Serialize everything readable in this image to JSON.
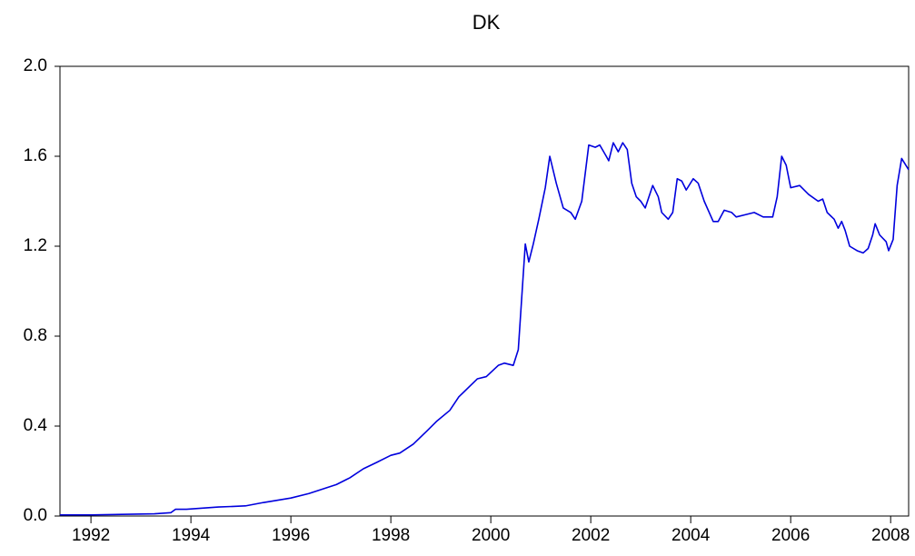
{
  "chart_data": {
    "type": "line",
    "title": "DK",
    "x": [
      1991.38,
      1992.0,
      1993.27,
      1993.6,
      1993.69,
      1993.91,
      1994.55,
      1995.09,
      1995.45,
      1996.0,
      1996.36,
      1996.91,
      1997.18,
      1997.45,
      1997.73,
      1998.0,
      1998.18,
      1998.45,
      1998.73,
      1998.91,
      1999.18,
      1999.36,
      1999.73,
      1999.91,
      2000.15,
      2000.27,
      2000.45,
      2000.55,
      2000.69,
      2000.76,
      2000.85,
      2000.96,
      2001.09,
      2001.18,
      2001.31,
      2001.45,
      2001.6,
      2001.69,
      2001.82,
      2001.96,
      2002.09,
      2002.18,
      2002.31,
      2002.36,
      2002.45,
      2002.55,
      2002.64,
      2002.73,
      2002.82,
      2002.91,
      2003.0,
      2003.09,
      2003.24,
      2003.35,
      2003.42,
      2003.55,
      2003.64,
      2003.73,
      2003.82,
      2003.91,
      2004.05,
      2004.15,
      2004.27,
      2004.45,
      2004.55,
      2004.67,
      2004.82,
      2004.91,
      2005.09,
      2005.27,
      2005.45,
      2005.64,
      2005.73,
      2005.82,
      2005.91,
      2006.0,
      2006.18,
      2006.36,
      2006.55,
      2006.64,
      2006.73,
      2006.87,
      2006.95,
      2007.02,
      2007.09,
      2007.18,
      2007.33,
      2007.45,
      2007.55,
      2007.64,
      2007.69,
      2007.78,
      2007.91,
      2007.96,
      2008.05,
      2008.13,
      2008.22,
      2008.36
    ],
    "series": [
      {
        "name": "DK",
        "color": "#0000dd",
        "values": [
          0.005,
          0.005,
          0.01,
          0.015,
          0.03,
          0.03,
          0.04,
          0.045,
          0.06,
          0.08,
          0.1,
          0.14,
          0.17,
          0.21,
          0.24,
          0.27,
          0.28,
          0.32,
          0.38,
          0.42,
          0.47,
          0.53,
          0.61,
          0.62,
          0.67,
          0.68,
          0.67,
          0.74,
          1.21,
          1.13,
          1.21,
          1.32,
          1.46,
          1.6,
          1.48,
          1.37,
          1.35,
          1.32,
          1.4,
          1.65,
          1.64,
          1.65,
          1.6,
          1.58,
          1.66,
          1.62,
          1.66,
          1.63,
          1.48,
          1.42,
          1.4,
          1.37,
          1.47,
          1.42,
          1.35,
          1.32,
          1.35,
          1.5,
          1.49,
          1.45,
          1.5,
          1.48,
          1.4,
          1.31,
          1.31,
          1.36,
          1.35,
          1.33,
          1.34,
          1.35,
          1.33,
          1.33,
          1.42,
          1.6,
          1.56,
          1.46,
          1.47,
          1.43,
          1.4,
          1.41,
          1.35,
          1.32,
          1.28,
          1.31,
          1.27,
          1.2,
          1.18,
          1.17,
          1.19,
          1.25,
          1.3,
          1.25,
          1.22,
          1.18,
          1.23,
          1.47,
          1.59,
          1.54
        ]
      }
    ],
    "xlim": [
      1991.38,
      2008.36
    ],
    "xticks": [
      1992,
      1994,
      1996,
      1998,
      2000,
      2002,
      2004,
      2006,
      2008
    ],
    "ylim": [
      0,
      2
    ],
    "yticks": [
      {
        "value": 0,
        "label": "0.0"
      },
      0.4,
      0.8,
      {
        "value": 1.2,
        "label": "1.2"
      },
      {
        "value": 1.6,
        "label": "1.6"
      },
      {
        "value": 2,
        "label": "2.0"
      }
    ],
    "grid": false
  }
}
